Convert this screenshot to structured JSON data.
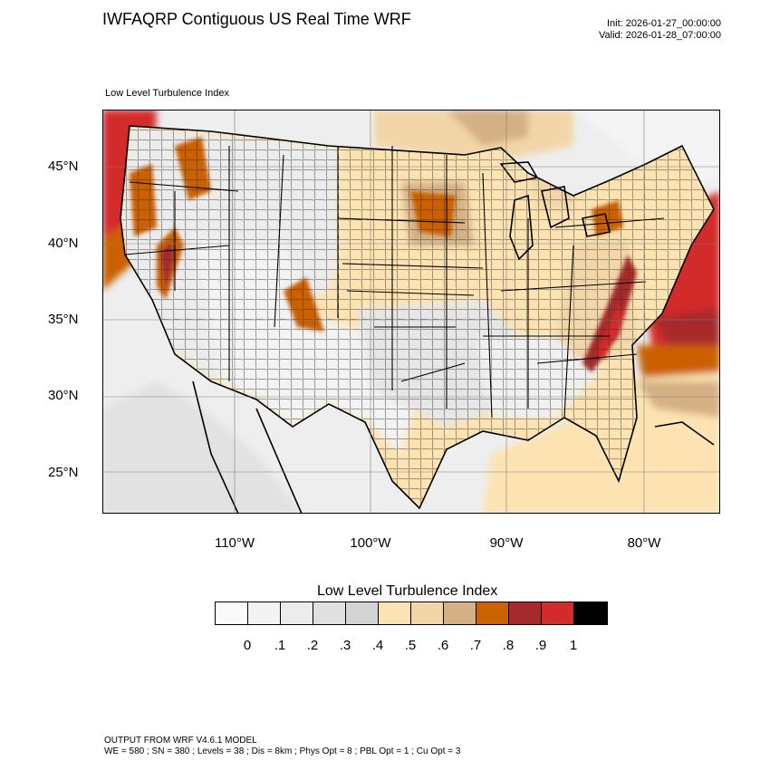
{
  "header": {
    "title": "IWFAQRP Contiguous US Real Time WRF",
    "init": "Init: 2026-01-27_00:00:00",
    "valid": "Valid: 2026-01-28_07:00:00"
  },
  "map": {
    "subtitle": "Low Level Turbulence Index",
    "lat_labels": [
      "45°N",
      "40°N",
      "35°N",
      "30°N",
      "25°N"
    ],
    "lon_labels": [
      "110°W",
      "100°W",
      "90°W",
      "80°W"
    ]
  },
  "colorbar": {
    "title": "Low Level Turbulence Index",
    "colors": [
      "#fafafa",
      "#f3f3f3",
      "#ececec",
      "#e0e0e0",
      "#d4d4d4",
      "#fde3b1",
      "#f2d6a8",
      "#d4b084",
      "#cc6100",
      "#a72a2a",
      "#d32a2a",
      "#000000"
    ],
    "labels": [
      "0",
      ".1",
      ".2",
      ".3",
      ".4",
      ".5",
      ".6",
      ".7",
      ".8",
      ".9",
      "1"
    ]
  },
  "footer": {
    "line1": "OUTPUT FROM WRF V4.6.1 MODEL",
    "line2": "WE = 580 ; SN = 380 ; Levels = 38 ; Dis = 8km ; Phys Opt = 8 ; PBL Opt = 1 ; Cu Opt = 3"
  }
}
